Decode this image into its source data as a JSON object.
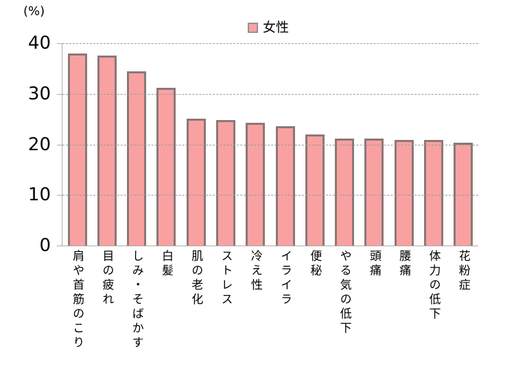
{
  "unit_label": "(%)",
  "legend": {
    "series_label": "女性"
  },
  "colors": {
    "bar_fill": "#F9A1A1",
    "bar_border": "#8A7878",
    "legend_fill": "#F7A3A6",
    "legend_border": "#9C8F8F",
    "gridline": "#999999",
    "axis": "#ABABAB",
    "text": "#000000"
  },
  "chart_data": {
    "type": "bar",
    "title": "",
    "unit": "%",
    "unit_label": "(%)",
    "legend_position": "top-center",
    "bar_orientation": "vertical",
    "x_label_orientation": "vertical-upright",
    "grid": "horizontal-dashed",
    "ylim": [
      0,
      40
    ],
    "yticks": [
      0,
      10,
      20,
      30,
      40
    ],
    "categories": [
      "肩や首筋のこり",
      "目の疲れ",
      "しみ・そばかす",
      "白髪",
      "肌の老化",
      "ストレス",
      "冷え性",
      "イライラ",
      "便秘",
      "やる気の低下",
      "頭痛",
      "腰痛",
      "体力の低下",
      "花粉症"
    ],
    "series": [
      {
        "name": "女性",
        "values": [
          38.0,
          37.6,
          34.4,
          31.2,
          25.1,
          24.8,
          24.3,
          23.6,
          22.0,
          21.1,
          21.1,
          20.9,
          20.9,
          20.4
        ]
      }
    ]
  }
}
